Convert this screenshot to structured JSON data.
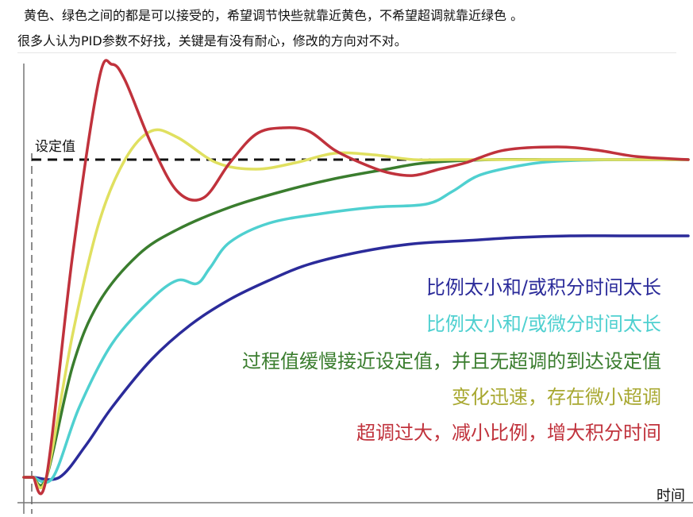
{
  "article": {
    "line1": "黄色、绿色之间的都是可以接受的，希望调节快些就靠近黄色，不希望超调就靠近绿色 。",
    "line2": "很多人认为PID参数不好找，关键是有没有耐心，修改的方向对不对。"
  },
  "chart_data": {
    "type": "line",
    "title": "",
    "xlabel": "时间",
    "ylabel": "",
    "setpoint_label": "设定值",
    "setpoint": 1.0,
    "xlim": [
      0,
      100
    ],
    "ylim": [
      0,
      1.4
    ],
    "grid": false,
    "legend": "inline text, right-center",
    "series": [
      {
        "name": "比例太小和/或积分时间太长",
        "color": "#2b2b9a",
        "x": [
          0,
          4,
          8,
          12,
          18,
          24,
          30,
          36,
          42,
          50,
          58,
          66,
          74,
          82,
          90,
          100
        ],
        "y": [
          0,
          0,
          0.1,
          0.22,
          0.37,
          0.48,
          0.56,
          0.62,
          0.67,
          0.71,
          0.735,
          0.745,
          0.755,
          0.76,
          0.76,
          0.76
        ]
      },
      {
        "name": "比例太小和/或微分时间太长",
        "color": "#4fd0d0",
        "x": [
          0,
          3,
          7,
          12,
          18,
          22,
          25,
          27,
          30,
          36,
          44,
          52,
          60,
          64,
          68,
          74,
          80,
          90,
          100
        ],
        "y": [
          0,
          0,
          0.22,
          0.42,
          0.56,
          0.62,
          0.61,
          0.66,
          0.74,
          0.8,
          0.83,
          0.85,
          0.86,
          0.9,
          0.95,
          0.98,
          0.995,
          1.0,
          1.0
        ]
      },
      {
        "name": "过程值缓慢接近设定值，并且无超调的到达设定值",
        "color": "#3a7d2e",
        "x": [
          0,
          2,
          6,
          10,
          16,
          22,
          30,
          38,
          46,
          54,
          60,
          70,
          80,
          90,
          100
        ],
        "y": [
          0,
          0,
          0.35,
          0.55,
          0.7,
          0.78,
          0.85,
          0.9,
          0.94,
          0.97,
          0.99,
          1.0,
          1.0,
          1.0,
          1.0
        ]
      },
      {
        "name": "变化迅速，存在微小超调",
        "color": "#e0e060",
        "x": [
          0,
          2,
          6,
          10,
          14,
          18,
          22,
          28,
          34,
          40,
          46,
          52,
          58,
          64,
          80,
          100
        ],
        "y": [
          0,
          0,
          0.45,
          0.8,
          1.0,
          1.09,
          1.07,
          0.99,
          0.97,
          0.99,
          1.02,
          1.015,
          1.0,
          1.0,
          1.0,
          1.0
        ]
      },
      {
        "name": "超调过大，减小比例，增大积分时间",
        "color": "#c0323c",
        "x": [
          0,
          2,
          6,
          10,
          12,
          14,
          18,
          22,
          26,
          30,
          34,
          38,
          42,
          46,
          50,
          54,
          58,
          62,
          66,
          72,
          80,
          86,
          92,
          100
        ],
        "y": [
          0,
          0,
          0.7,
          1.25,
          1.3,
          1.25,
          1.05,
          0.9,
          0.88,
          0.99,
          1.08,
          1.1,
          1.09,
          1.03,
          0.99,
          0.96,
          0.95,
          0.97,
          0.99,
          1.03,
          1.04,
          1.03,
          1.01,
          1.0
        ]
      }
    ]
  }
}
